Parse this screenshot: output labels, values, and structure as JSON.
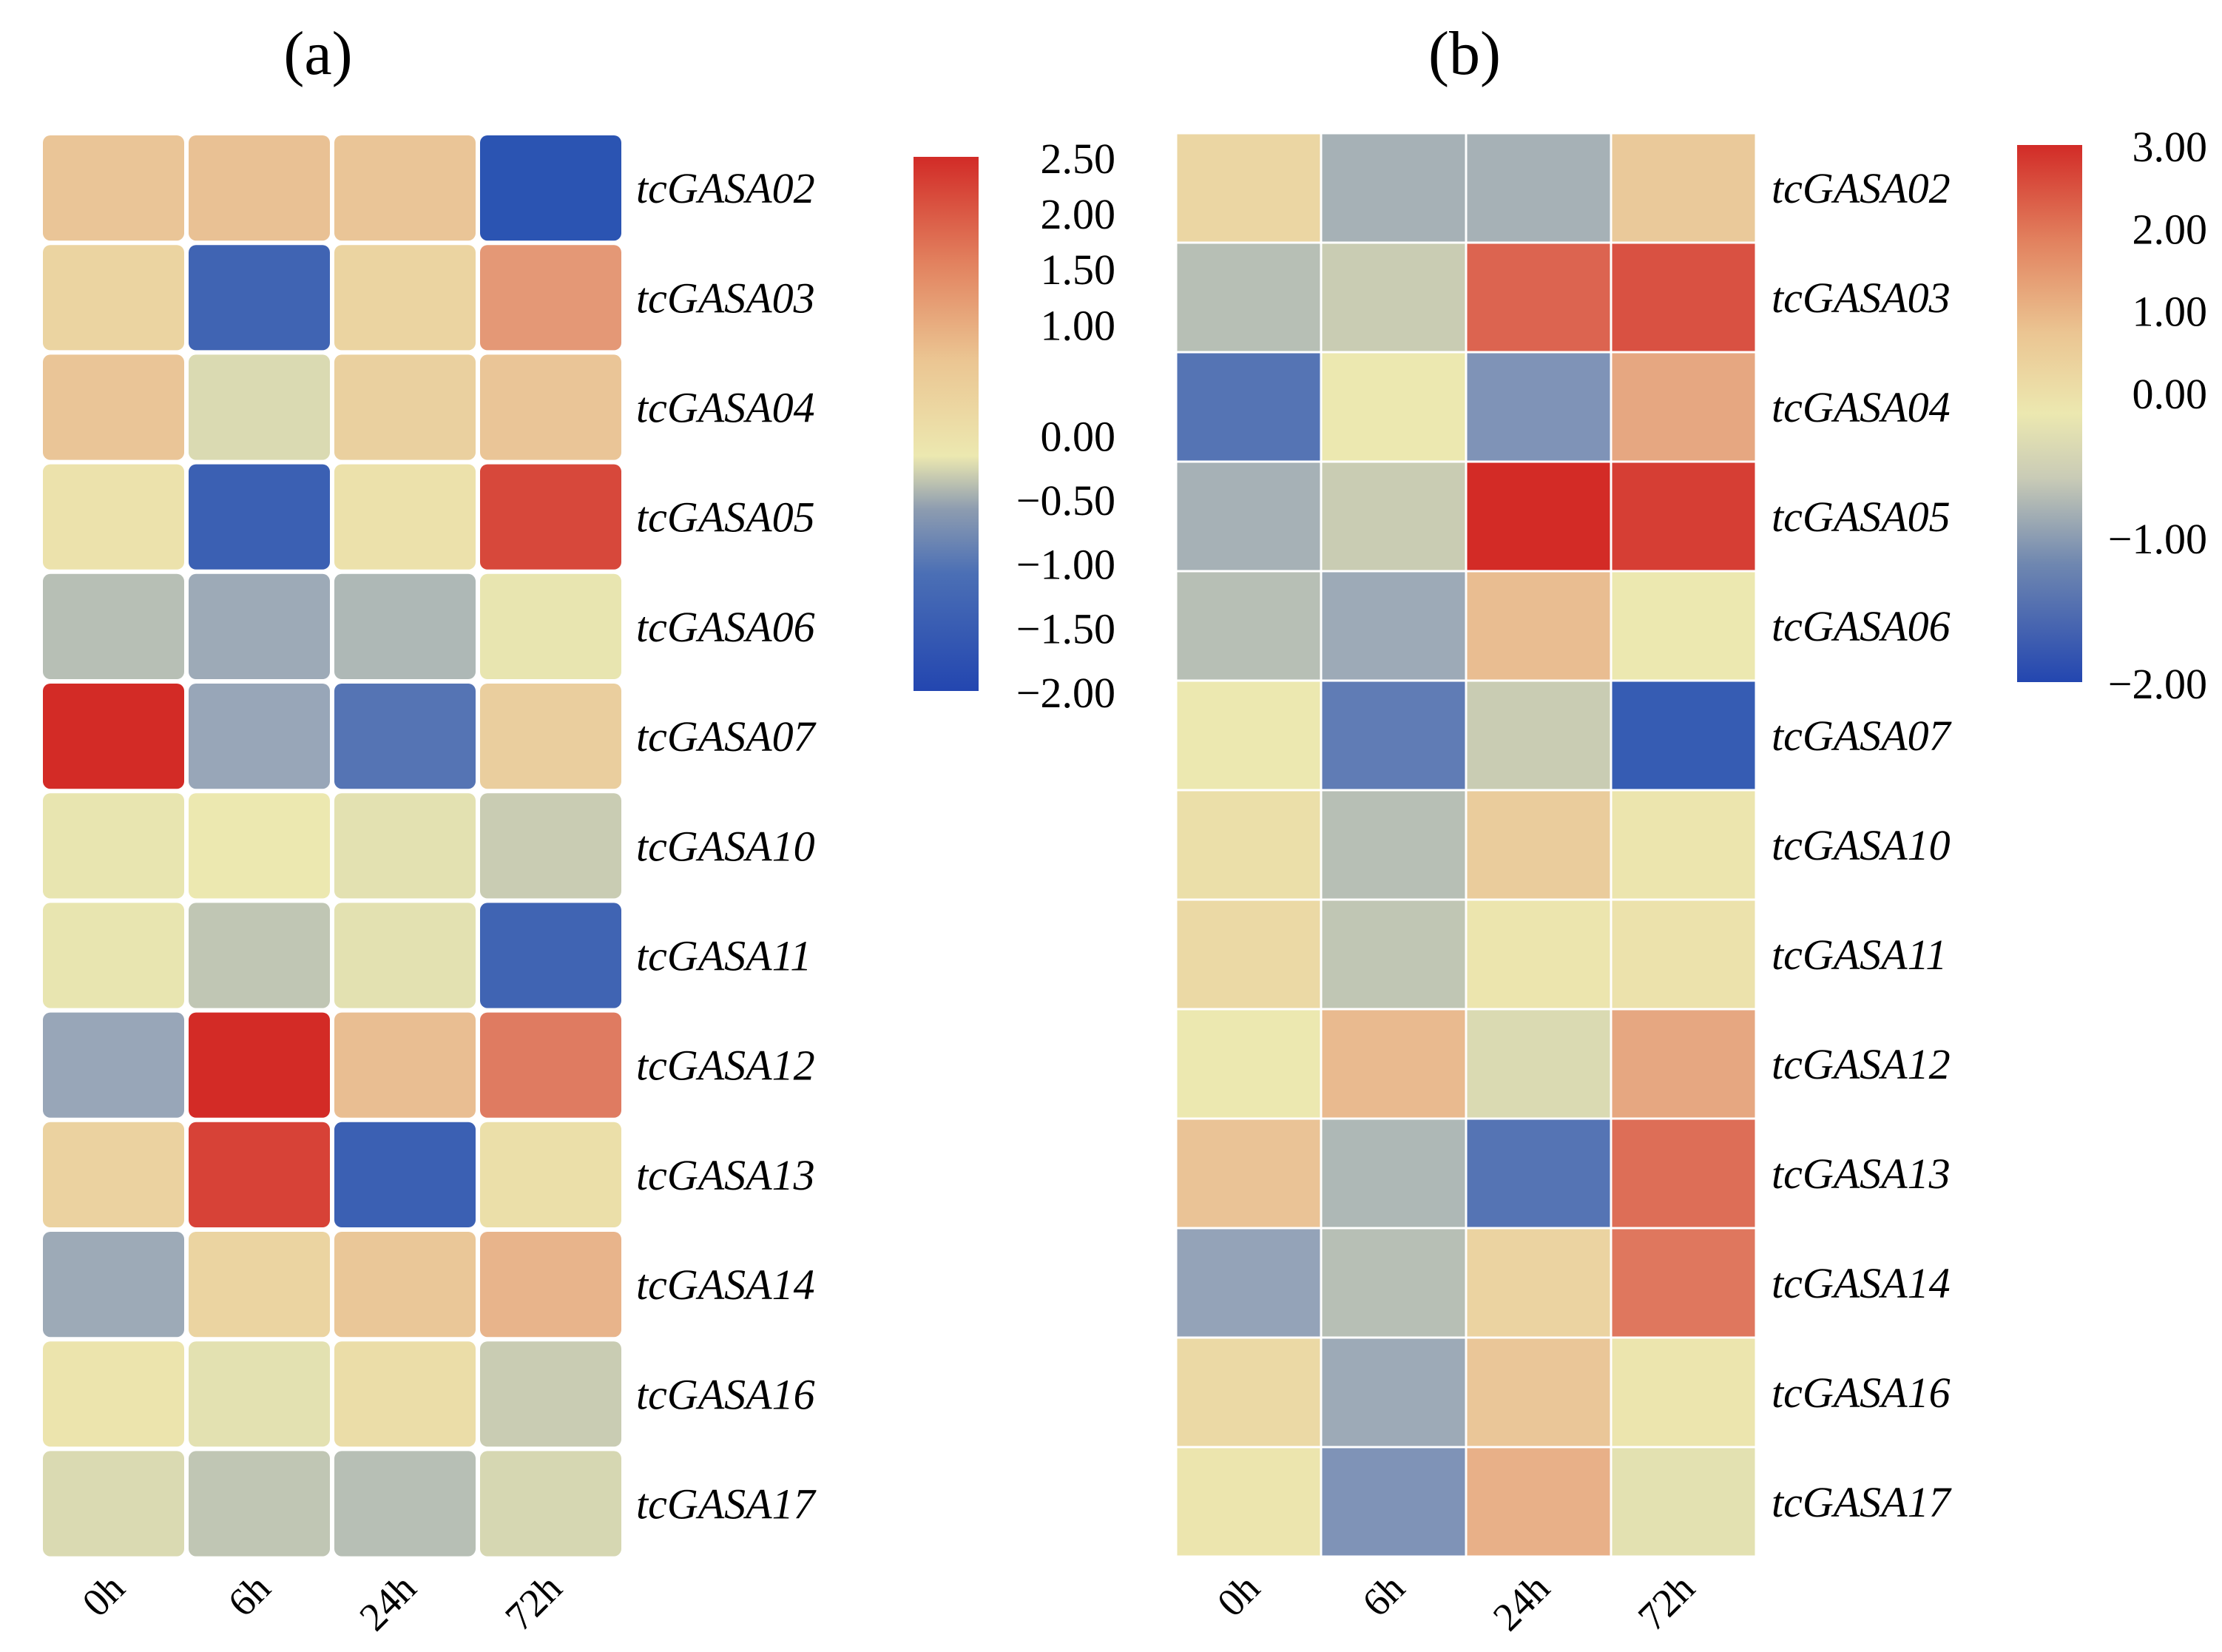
{
  "chart_data": [
    {
      "type": "heatmap",
      "title": "(a)",
      "columns": [
        "0h",
        "6h",
        "24h",
        "72h"
      ],
      "rows": [
        "tcGASA02",
        "tcGASA03",
        "tcGASA04",
        "tcGASA05",
        "tcGASA06",
        "tcGASA07",
        "tcGASA10",
        "tcGASA11",
        "tcGASA12",
        "tcGASA13",
        "tcGASA14",
        "tcGASA16",
        "tcGASA17"
      ],
      "values": [
        [
          0.95,
          1.05,
          0.95,
          -2.0
        ],
        [
          0.55,
          -1.8,
          0.55,
          1.55
        ],
        [
          0.95,
          -0.2,
          0.65,
          0.95
        ],
        [
          0.15,
          -1.85,
          0.2,
          2.25
        ],
        [
          -0.6,
          -0.9,
          -0.7,
          -0.05
        ],
        [
          2.5,
          -0.95,
          -1.6,
          0.7
        ],
        [
          -0.05,
          0.0,
          -0.1,
          -0.4
        ],
        [
          -0.05,
          -0.5,
          -0.1,
          -1.8
        ],
        [
          -0.95,
          2.5,
          1.15,
          1.8
        ],
        [
          0.6,
          2.3,
          -1.85,
          0.25
        ],
        [
          -0.9,
          0.55,
          0.9,
          1.3
        ],
        [
          0.1,
          -0.1,
          0.3,
          -0.4
        ],
        [
          -0.2,
          -0.5,
          -0.6,
          -0.25
        ]
      ],
      "colorbar": {
        "ticks": [
          "2.50",
          "2.00",
          "1.50",
          "1.00",
          "0.00",
          "−0.50",
          "−1.00",
          "−1.50",
          "−2.00"
        ],
        "min": -2.0,
        "max": 2.5
      },
      "rounded_cells": true
    },
    {
      "type": "heatmap",
      "title": "(b)",
      "columns": [
        "0h",
        "6h",
        "24h",
        "72h"
      ],
      "rows": [
        "tcGASA02",
        "tcGASA03",
        "tcGASA04",
        "tcGASA05",
        "tcGASA06",
        "tcGASA07",
        "tcGASA10",
        "tcGASA11",
        "tcGASA12",
        "tcGASA13",
        "tcGASA14",
        "tcGASA16",
        "tcGASA17"
      ],
      "values": [
        [
          0.6,
          -0.8,
          -0.8,
          1.0
        ],
        [
          -0.6,
          -0.4,
          2.4,
          2.6
        ],
        [
          -1.6,
          0.0,
          -1.2,
          1.7
        ],
        [
          -0.8,
          -0.4,
          3.0,
          2.8
        ],
        [
          -0.6,
          -0.9,
          1.4,
          0.0
        ],
        [
          0.0,
          -1.5,
          -0.4,
          -1.9
        ],
        [
          0.3,
          -0.6,
          0.9,
          0.1
        ],
        [
          0.5,
          -0.5,
          0.1,
          0.2
        ],
        [
          0.0,
          1.5,
          -0.2,
          1.7
        ],
        [
          1.2,
          -0.7,
          -1.6,
          2.3
        ],
        [
          -1.0,
          -0.6,
          0.7,
          2.2
        ],
        [
          0.5,
          -0.9,
          1.1,
          0.1
        ],
        [
          0.1,
          -1.2,
          1.6,
          -0.1
        ]
      ],
      "colorbar": {
        "ticks": [
          "3.00",
          "2.00",
          "1.00",
          "0.00",
          "−1.00",
          "−2.00"
        ],
        "min": -2.0,
        "max": 3.0
      },
      "rounded_cells": false
    }
  ],
  "colors": {
    "low": "#2b54b2",
    "midlow": "#94a3b8",
    "mid": "#ece8b0",
    "midhigh": "#e9ba8f",
    "high": "#d32b26",
    "cell_gap": "#ffffff"
  }
}
